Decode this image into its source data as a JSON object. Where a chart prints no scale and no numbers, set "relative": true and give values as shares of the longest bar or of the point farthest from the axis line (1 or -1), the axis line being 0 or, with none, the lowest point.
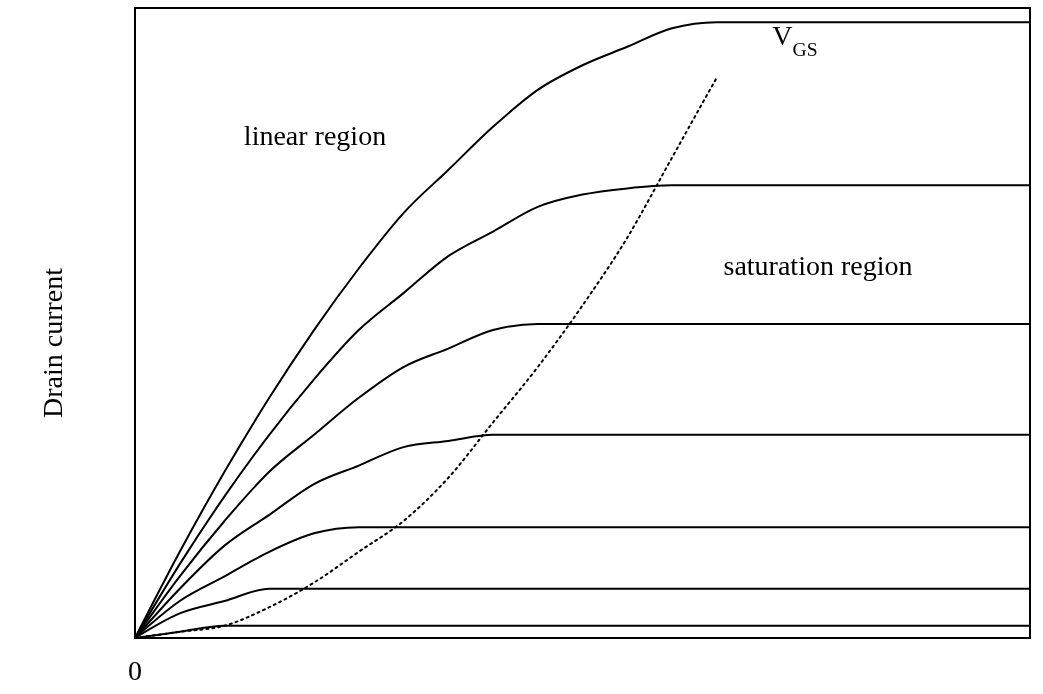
{
  "chart_data": {
    "type": "line",
    "relative": true,
    "ylabel": "Drain current",
    "marker": "none",
    "line_style": "solid",
    "annotations": [
      "linear region",
      "saturation region",
      "V$_{GS}$",
      "0"
    ],
    "categories": [
      null,
      null,
      null,
      null,
      null,
      null,
      null,
      null,
      null,
      null,
      null,
      null,
      null,
      null,
      null,
      null,
      null,
      null,
      null,
      null,
      null
    ],
    "series": [
      {
        "color": "#000000",
        "values": [
          0,
          0.14,
          0.27,
          0.39,
          0.5,
          0.6,
          0.69,
          0.76,
          0.83,
          0.89,
          0.93,
          0.96,
          0.99,
          1,
          1,
          1,
          1,
          1,
          1,
          1,
          1
        ]
      },
      {
        "color": "#000000",
        "values": [
          0,
          0.12,
          0.23,
          0.33,
          0.42,
          0.5,
          0.56,
          0.62,
          0.66,
          0.7,
          0.72,
          0.73,
          0.735,
          0.735,
          0.735,
          0.735,
          0.735,
          0.735,
          0.735,
          0.735,
          0.735
        ]
      },
      {
        "color": "#000000",
        "values": [
          0,
          0.1,
          0.19,
          0.27,
          0.33,
          0.39,
          0.44,
          0.47,
          0.5,
          0.51,
          0.51,
          0.51,
          0.51,
          0.51,
          0.51,
          0.51,
          0.51,
          0.51,
          0.51,
          0.51,
          0.51
        ]
      },
      {
        "color": "#000000",
        "values": [
          0,
          0.08,
          0.15,
          0.2,
          0.25,
          0.28,
          0.31,
          0.32,
          0.33,
          0.33,
          0.33,
          0.33,
          0.33,
          0.33,
          0.33,
          0.33,
          0.33,
          0.33,
          0.33,
          0.33,
          0.33
        ]
      },
      {
        "color": "#000000",
        "values": [
          0,
          0.06,
          0.1,
          0.14,
          0.17,
          0.18,
          0.18,
          0.18,
          0.18,
          0.18,
          0.18,
          0.18,
          0.18,
          0.18,
          0.18,
          0.18,
          0.18,
          0.18,
          0.18,
          0.18,
          0.18
        ]
      },
      {
        "color": "#000000",
        "values": [
          0,
          0.04,
          0.06,
          0.08,
          0.08,
          0.08,
          0.08,
          0.08,
          0.08,
          0.08,
          0.08,
          0.08,
          0.08,
          0.08,
          0.08,
          0.08,
          0.08,
          0.08,
          0.08,
          0.08,
          0.08
        ]
      },
      {
        "color": "#000000",
        "values": [
          0,
          0.01,
          0.02,
          0.02,
          0.02,
          0.02,
          0.02,
          0.02,
          0.02,
          0.02,
          0.02,
          0.02,
          0.02,
          0.02,
          0.02,
          0.02,
          0.02,
          0.02,
          0.02,
          0.02,
          0.02
        ]
      },
      {
        "color": "#000000",
        "line_style": "dotted",
        "values": [
          0,
          0.01,
          0.02,
          0.05,
          0.09,
          0.14,
          0.19,
          0.26,
          0.35,
          0.44,
          0.54,
          0.65,
          0.78,
          0.91,
          null,
          null,
          null,
          null,
          null,
          null,
          null
        ]
      }
    ]
  }
}
